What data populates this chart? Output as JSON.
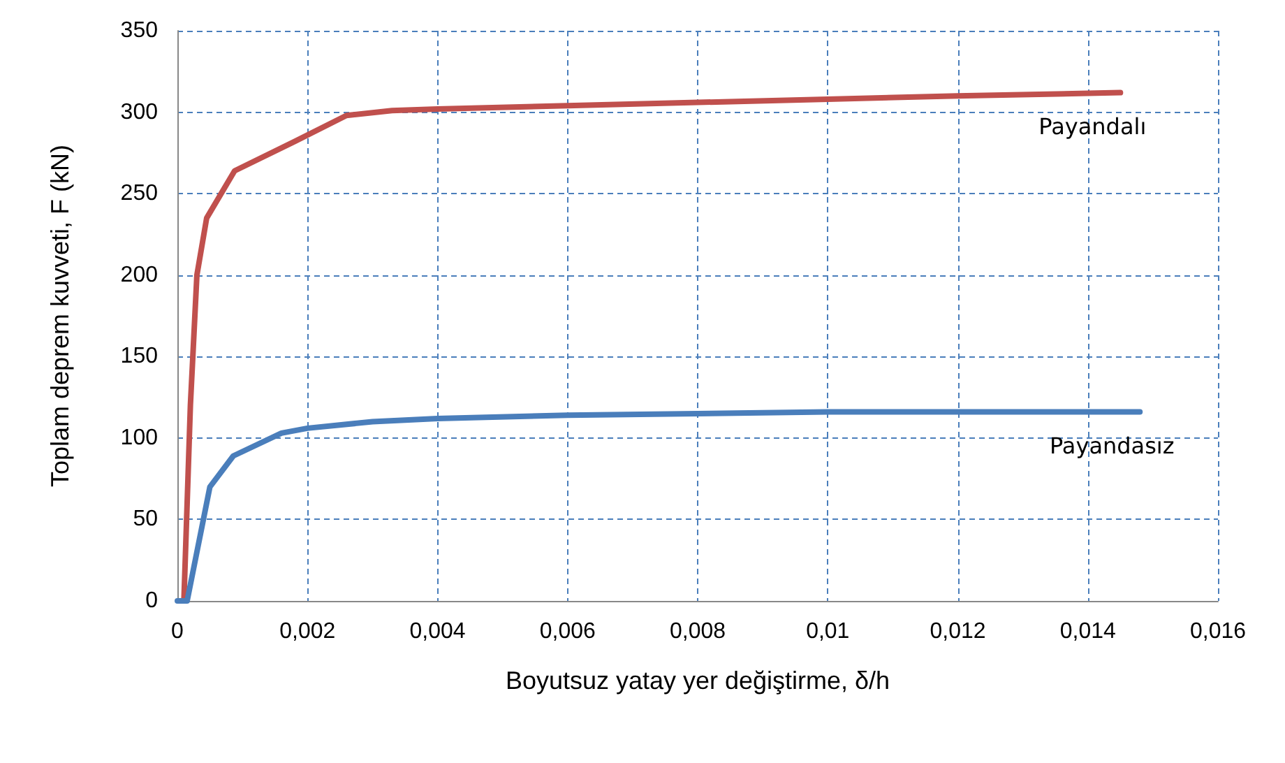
{
  "chart_data": {
    "type": "line",
    "xlabel": "Boyutsuz yatay yer değiştirme, δ/h",
    "ylabel": "Toplam deprem kuvveti, F (kN)",
    "series": [
      {
        "name": "Payandalı",
        "color": "#c0504d",
        "x": [
          0.0001,
          0.00015,
          0.0002,
          0.0003,
          0.00045,
          0.00088,
          0.0018,
          0.0026,
          0.0033,
          0.004,
          0.006,
          0.008,
          0.01,
          0.012,
          0.0145
        ],
        "values": [
          0,
          60,
          120,
          200,
          235,
          264,
          282,
          298,
          301,
          302,
          304,
          306,
          308,
          310,
          312
        ]
      },
      {
        "name": "Payandasız",
        "color": "#4a7ebb",
        "x": [
          0,
          0.00015,
          0.0003,
          0.0005,
          0.00086,
          0.0016,
          0.002,
          0.003,
          0.004,
          0.006,
          0.008,
          0.01,
          0.012,
          0.0148
        ],
        "values": [
          0,
          0,
          30,
          70,
          89,
          103,
          106,
          110,
          112,
          114,
          115,
          116,
          116,
          116
        ]
      }
    ],
    "xlim": [
      0,
      0.016
    ],
    "xticks": [
      0,
      {
        "value": 0.002,
        "label": "0,002"
      },
      {
        "value": 0.004,
        "label": "0,004"
      },
      {
        "value": 0.006,
        "label": "0,006"
      },
      {
        "value": 0.008,
        "label": "0,008"
      },
      {
        "value": 0.01,
        "label": "0,01"
      },
      {
        "value": 0.012,
        "label": "0,012"
      },
      {
        "value": 0.014,
        "label": "0,014"
      },
      {
        "value": 0.016,
        "label": "0,016"
      }
    ],
    "ylim": [
      0,
      350
    ],
    "yticks": [
      0,
      50,
      100,
      150,
      200,
      250,
      300,
      350
    ],
    "grid": true,
    "legend": false,
    "marker": "none",
    "line_style": "solid"
  }
}
